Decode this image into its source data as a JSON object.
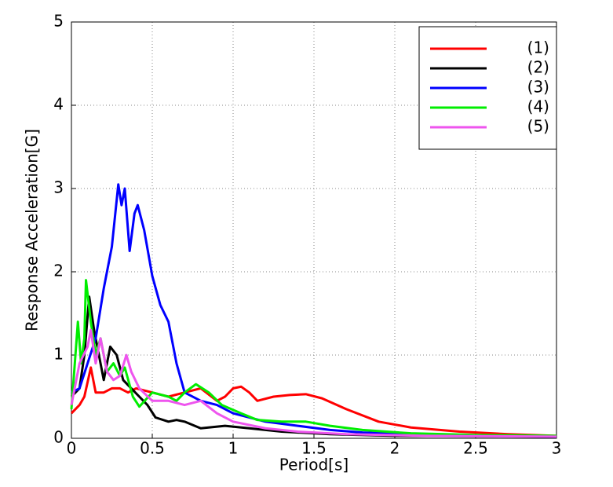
{
  "chart_data": {
    "type": "line",
    "xlabel": "Period[s]",
    "ylabel": "Response Acceleration[G]",
    "xlim": [
      0,
      3
    ],
    "ylim": [
      0,
      5
    ],
    "xticks": [
      0,
      0.5,
      1,
      1.5,
      2,
      2.5,
      3
    ],
    "yticks": [
      0,
      1,
      2,
      3,
      4,
      5
    ],
    "grid": true,
    "legend": "upper right",
    "series": [
      {
        "name": "(1)",
        "color": "#ff0000",
        "x": [
          0,
          0.05,
          0.08,
          0.12,
          0.15,
          0.2,
          0.25,
          0.3,
          0.35,
          0.4,
          0.5,
          0.6,
          0.7,
          0.8,
          0.9,
          0.95,
          1.0,
          1.05,
          1.1,
          1.15,
          1.25,
          1.35,
          1.45,
          1.55,
          1.7,
          1.9,
          2.1,
          2.4,
          2.7,
          3
        ],
        "values": [
          0.3,
          0.4,
          0.5,
          0.85,
          0.55,
          0.55,
          0.6,
          0.6,
          0.55,
          0.6,
          0.55,
          0.5,
          0.55,
          0.6,
          0.45,
          0.5,
          0.6,
          0.62,
          0.55,
          0.45,
          0.5,
          0.52,
          0.53,
          0.48,
          0.35,
          0.2,
          0.13,
          0.08,
          0.05,
          0.03
        ]
      },
      {
        "name": "(2)",
        "color": "#000000",
        "x": [
          0,
          0.05,
          0.08,
          0.11,
          0.14,
          0.17,
          0.2,
          0.24,
          0.28,
          0.32,
          0.37,
          0.42,
          0.47,
          0.52,
          0.6,
          0.65,
          0.7,
          0.8,
          0.95,
          1.1,
          1.3,
          1.6,
          2,
          3
        ],
        "values": [
          0.5,
          0.6,
          1.0,
          1.7,
          1.3,
          1.0,
          0.7,
          1.1,
          1.0,
          0.7,
          0.6,
          0.5,
          0.4,
          0.25,
          0.2,
          0.22,
          0.2,
          0.12,
          0.15,
          0.12,
          0.08,
          0.05,
          0.03,
          0.02
        ]
      },
      {
        "name": "(3)",
        "color": "#0000ff",
        "x": [
          0,
          0.05,
          0.1,
          0.15,
          0.2,
          0.25,
          0.29,
          0.31,
          0.33,
          0.36,
          0.39,
          0.41,
          0.45,
          0.5,
          0.55,
          0.6,
          0.65,
          0.7,
          0.8,
          0.9,
          1.0,
          1.2,
          1.4,
          1.6,
          1.8,
          2.1,
          2.5,
          3
        ],
        "values": [
          0.55,
          0.6,
          0.9,
          1.2,
          1.8,
          2.3,
          3.05,
          2.8,
          3.0,
          2.25,
          2.7,
          2.8,
          2.5,
          1.95,
          1.6,
          1.4,
          0.9,
          0.55,
          0.45,
          0.4,
          0.3,
          0.2,
          0.15,
          0.1,
          0.07,
          0.05,
          0.03,
          0.02
        ]
      },
      {
        "name": "(4)",
        "color": "#00ee00",
        "x": [
          0,
          0.04,
          0.06,
          0.08,
          0.09,
          0.12,
          0.15,
          0.18,
          0.22,
          0.26,
          0.3,
          0.33,
          0.38,
          0.42,
          0.5,
          0.6,
          0.65,
          0.7,
          0.77,
          0.85,
          0.93,
          1.05,
          1.15,
          1.3,
          1.45,
          1.6,
          1.8,
          2.1,
          2.5,
          3
        ],
        "values": [
          0.35,
          1.4,
          0.9,
          1.2,
          1.9,
          1.4,
          1.0,
          1.2,
          0.8,
          0.9,
          0.75,
          0.85,
          0.5,
          0.38,
          0.55,
          0.5,
          0.45,
          0.55,
          0.65,
          0.55,
          0.4,
          0.3,
          0.22,
          0.2,
          0.2,
          0.15,
          0.1,
          0.06,
          0.04,
          0.03
        ]
      },
      {
        "name": "(5)",
        "color": "#ee55ee",
        "x": [
          0,
          0.05,
          0.1,
          0.12,
          0.15,
          0.18,
          0.22,
          0.26,
          0.3,
          0.34,
          0.37,
          0.42,
          0.5,
          0.6,
          0.7,
          0.8,
          0.9,
          1.0,
          1.2,
          1.4,
          1.7,
          2.2,
          3
        ],
        "values": [
          0.4,
          0.9,
          1.1,
          1.3,
          0.9,
          1.2,
          0.8,
          0.7,
          0.75,
          1.0,
          0.8,
          0.6,
          0.45,
          0.45,
          0.4,
          0.45,
          0.3,
          0.2,
          0.12,
          0.08,
          0.05,
          0.03,
          0.02
        ]
      }
    ]
  }
}
